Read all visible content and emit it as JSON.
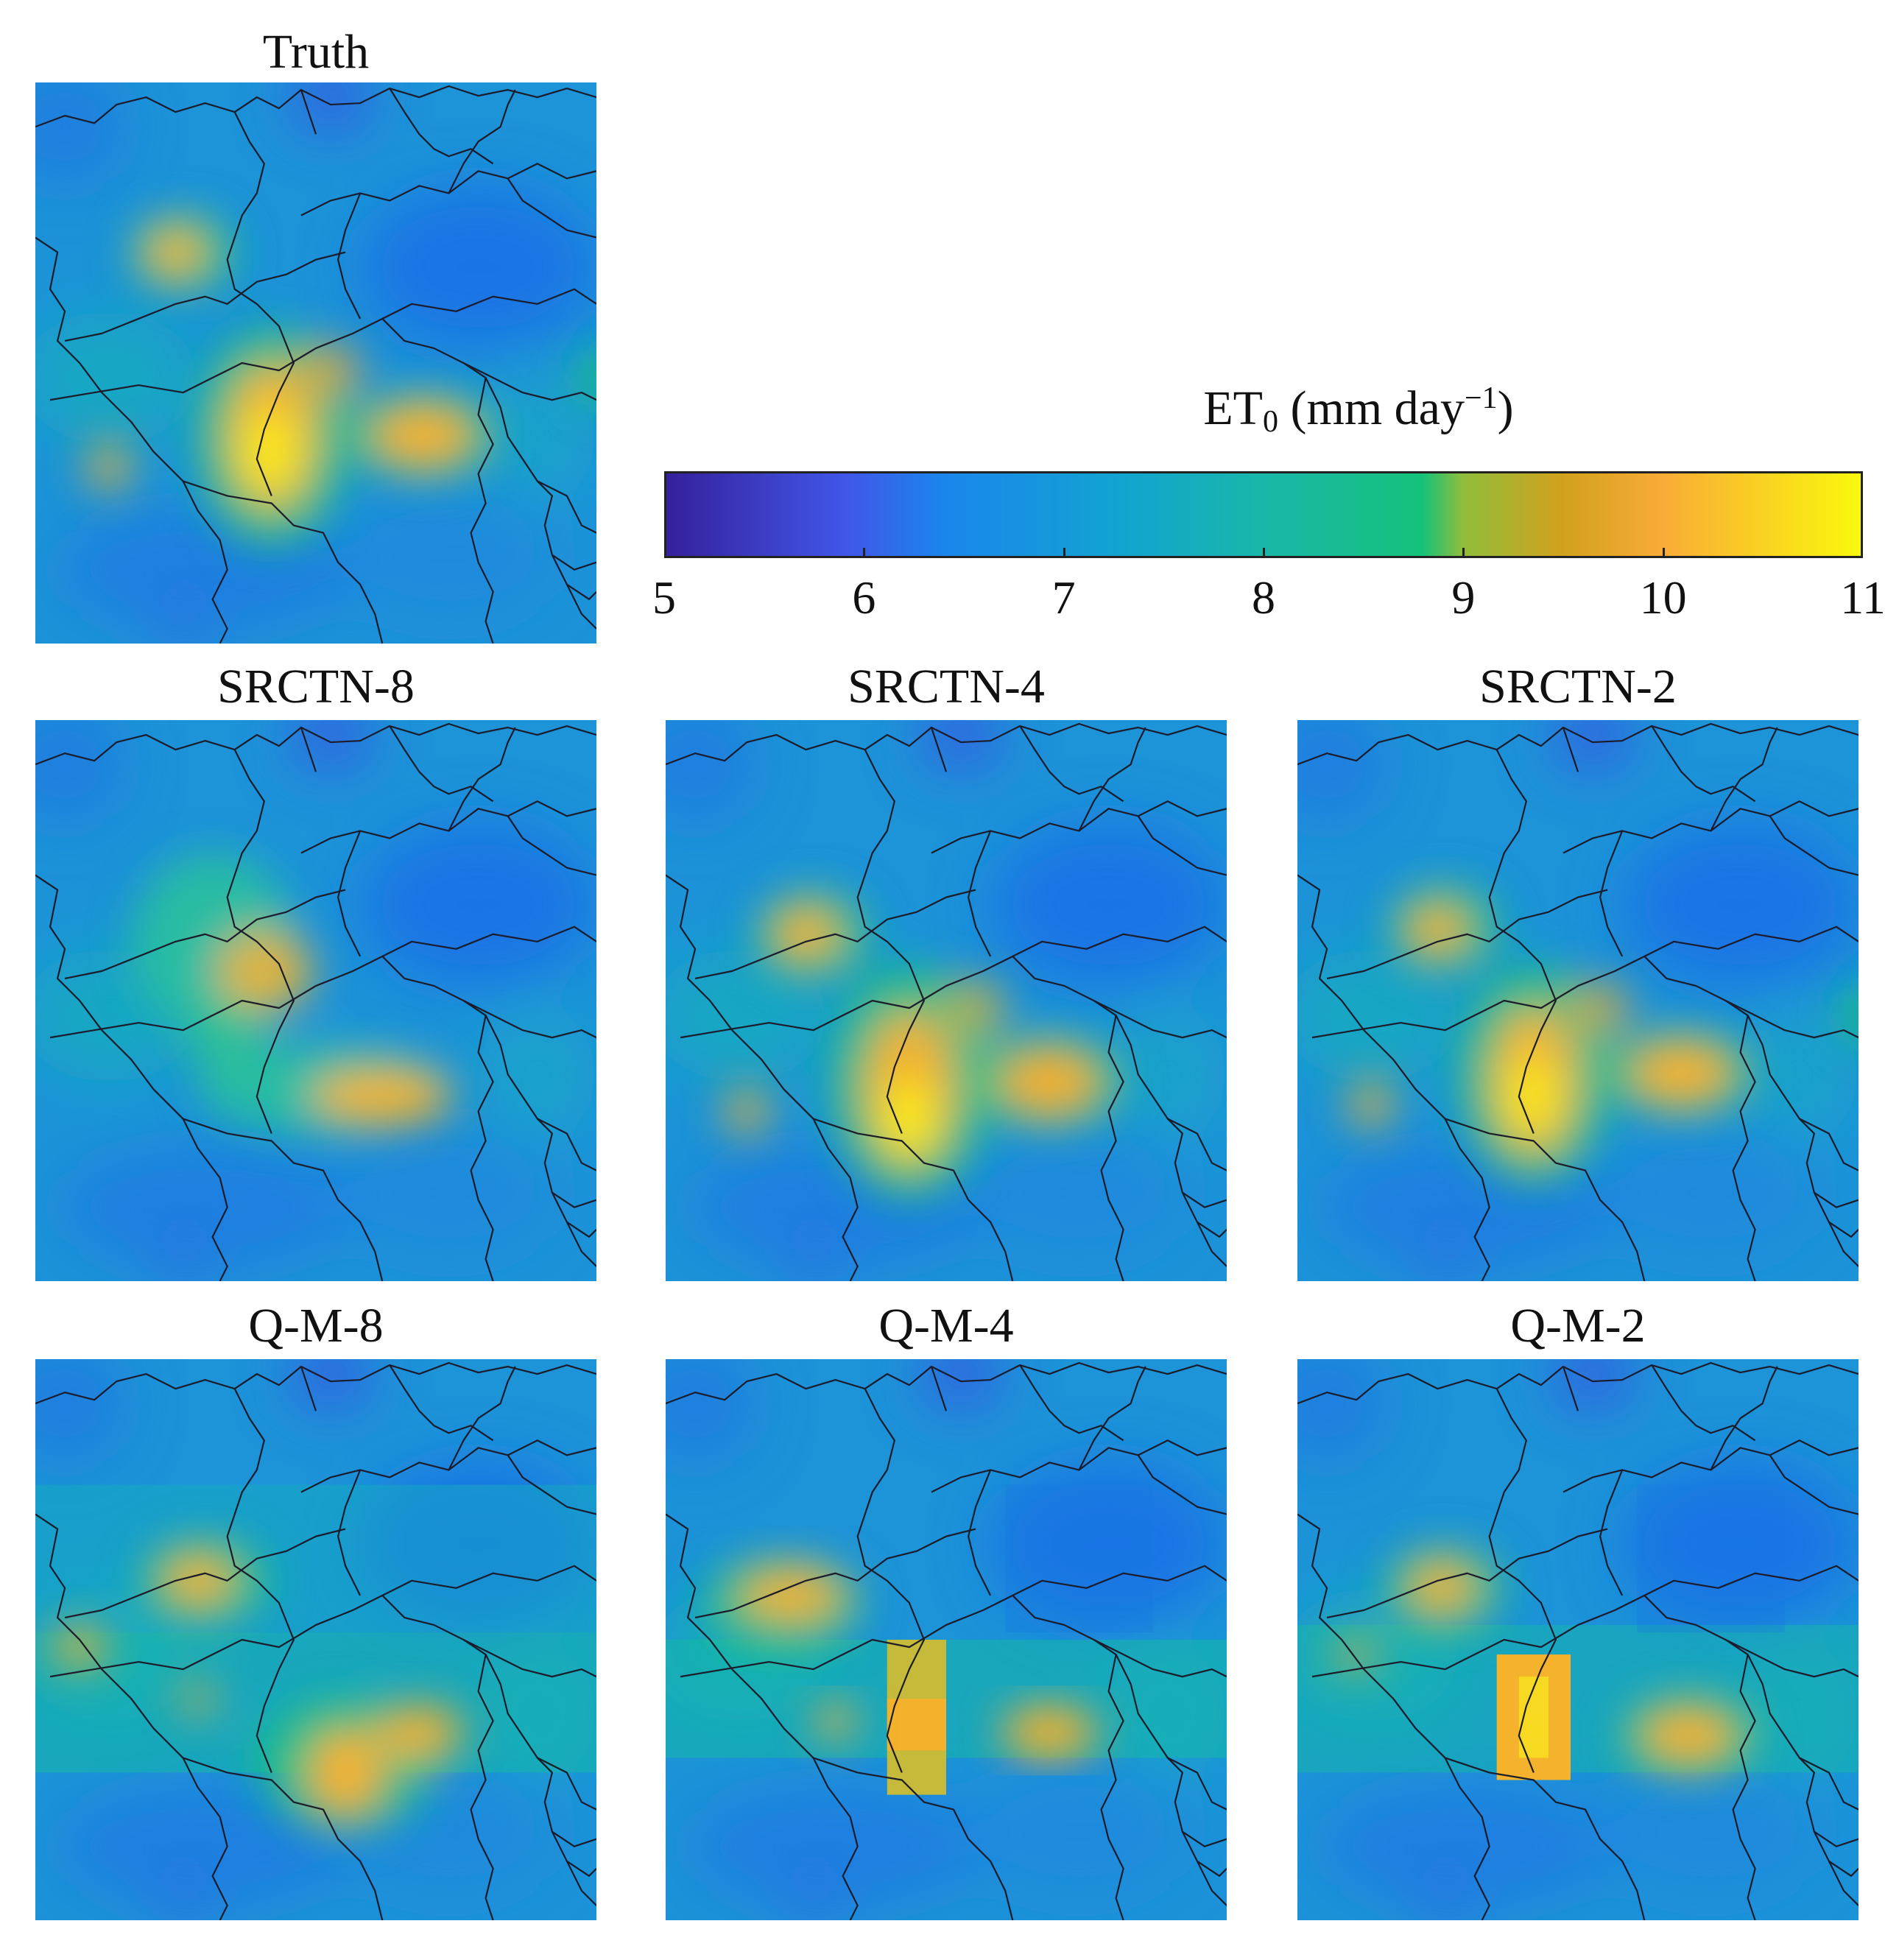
{
  "panels": [
    {
      "id": "truth",
      "title": "Truth"
    },
    {
      "id": "srctn8",
      "title": "SRCTN-8"
    },
    {
      "id": "srctn4",
      "title": "SRCTN-4"
    },
    {
      "id": "srctn2",
      "title": "SRCTN-2"
    },
    {
      "id": "qm8",
      "title": "Q-M-8"
    },
    {
      "id": "qm4",
      "title": "Q-M-4"
    },
    {
      "id": "qm2",
      "title": "Q-M-2"
    }
  ],
  "colorbar": {
    "label_main": "ET",
    "label_sub": "0",
    "label_mid": " (mm day",
    "label_sup": "−1",
    "label_end": ")",
    "ticks": [
      "5",
      "6",
      "7",
      "8",
      "9",
      "10",
      "11"
    ],
    "min": 5,
    "max": 11,
    "stops": [
      {
        "v": 5.0,
        "color": "#35209b"
      },
      {
        "v": 5.9,
        "color": "#4156e8"
      },
      {
        "v": 6.4,
        "color": "#1a86ec"
      },
      {
        "v": 7.3,
        "color": "#12a4d0"
      },
      {
        "v": 8.0,
        "color": "#19b7a9"
      },
      {
        "v": 8.8,
        "color": "#15c27a"
      },
      {
        "v": 9.0,
        "color": "#8fbd3a"
      },
      {
        "v": 9.5,
        "color": "#d1a11d"
      },
      {
        "v": 10.0,
        "color": "#f9ab37"
      },
      {
        "v": 11.0,
        "color": "#f9f80d"
      }
    ]
  }
}
